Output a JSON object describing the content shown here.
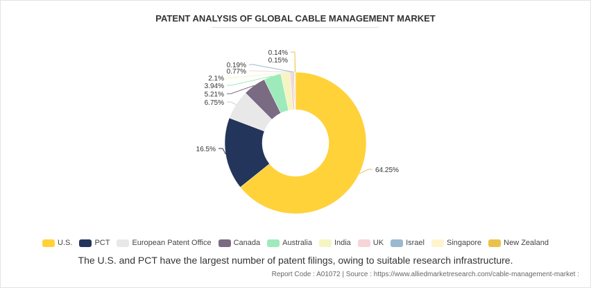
{
  "chart_data": {
    "type": "pie",
    "title": "PATENT ANALYSIS OF GLOBAL CABLE MANAGEMENT MARKET",
    "categories": [
      "U.S.",
      "PCT",
      "European Patent Office",
      "Canada",
      "Australia",
      "India",
      "UK",
      "Israel",
      "Singapore",
      "New Zealand"
    ],
    "values": [
      64.25,
      16.5,
      6.75,
      5.21,
      3.94,
      2.1,
      0.77,
      0.19,
      0.15,
      0.14
    ],
    "labels": [
      "64.25%",
      "16.5%",
      "6.75%",
      "5.21%",
      "3.94%",
      "2.1%",
      "0.77%",
      "0.19%",
      "0.15%",
      "0.14%"
    ],
    "colors": [
      "#ffd23a",
      "#23355a",
      "#e8e8e8",
      "#7a6a82",
      "#9eeabb",
      "#f5f5c2",
      "#f6d4d8",
      "#9ab8cf",
      "#fff4cc",
      "#e8c24a"
    ],
    "legend_position": "bottom"
  },
  "caption": "The U.S. and PCT have the largest number of patent filings, owing to suitable research infrastructure.",
  "source": "Report Code : A01072  |  Source : https://www.alliedmarketresearch.com/cable-management-market :"
}
